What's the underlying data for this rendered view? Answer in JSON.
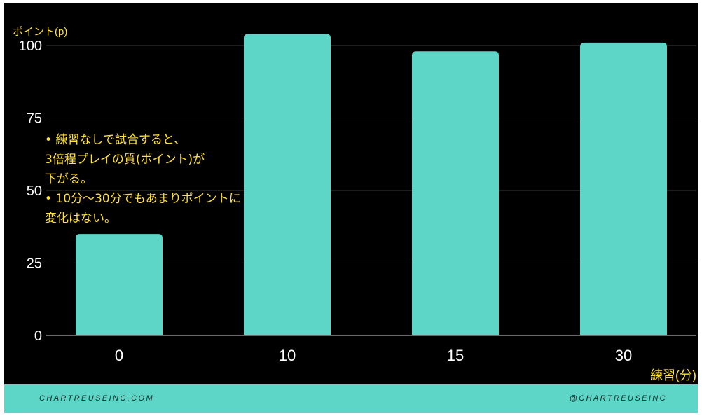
{
  "chart_data": {
    "type": "bar",
    "categories": [
      "0",
      "10",
      "15",
      "30"
    ],
    "values": [
      35,
      104,
      98,
      101
    ],
    "ylim": [
      0,
      100
    ],
    "yticks": [
      "0",
      "25",
      "50",
      "75",
      "100"
    ],
    "ylabel": "ポイント(p)",
    "xlabel": "練習(分)",
    "annotation": "• 練習なしで試合すると、\n3倍程プレイの質(ポイント)が\n下がる。\n• 10分〜30分でもあまりポイントに\n変化はない。",
    "bar_color": "#5dd6c8",
    "annotation_color": "#ffe23a",
    "grid": true
  },
  "footer": {
    "left": "CHARTREUSEINC.COM",
    "right": "@CHARTREUSEINC",
    "background": "#5dd6c8"
  }
}
